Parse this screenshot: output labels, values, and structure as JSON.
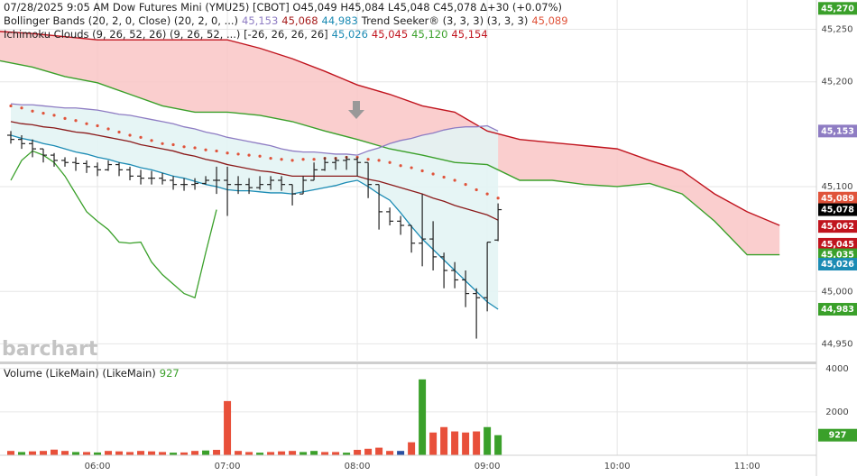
{
  "chart_data": {
    "type": "ohlc",
    "legend": [
      [
        {
          "text": "07/28/2025 9:05 AM Dow Futures Mini (YMU25) [CBOT] O45,049 H45,084 L45,048 C45,078 Δ+30 (+0.07%)"
        }
      ],
      [
        {
          "text": "Bollinger Bands (20, 2, 0, Close) (20, 2, 0, ...)"
        },
        {
          "text": "45,153",
          "color": "#8e7cc3"
        },
        {
          "text": "45,068",
          "color": "#a61c1c"
        },
        {
          "text": "44,983",
          "color": "#1b8bb4"
        },
        {
          "text": "Trend Seeker® (3, 3, 3) (3, 3, 3)"
        },
        {
          "text": "45,089",
          "color": "#e0533a"
        }
      ],
      [
        {
          "text": "Ichimoku Clouds (9, 26, 52, 26) (9, 26, 52, ...) [-26, 26, 26, 26]"
        },
        {
          "text": "45,026",
          "color": "#1b8bb4"
        },
        {
          "text": "45,045",
          "color": "#c0141e"
        },
        {
          "text": "45,120",
          "color": "#3aa02a"
        },
        {
          "text": "45,154",
          "color": "#c0141e"
        }
      ]
    ],
    "watermark": "barchart",
    "grid": true,
    "bar_color": "#222222",
    "x": [
      "05:20",
      "05:25",
      "05:30",
      "05:35",
      "05:40",
      "05:45",
      "05:50",
      "05:55",
      "06:00",
      "06:05",
      "06:10",
      "06:15",
      "06:20",
      "06:25",
      "06:30",
      "06:35",
      "06:40",
      "06:45",
      "06:50",
      "06:55",
      "07:00",
      "07:05",
      "07:10",
      "07:15",
      "07:20",
      "07:25",
      "07:30",
      "07:35",
      "07:40",
      "07:45",
      "07:50",
      "07:55",
      "08:00",
      "08:05",
      "08:10",
      "08:15",
      "08:20",
      "08:25",
      "08:30",
      "08:35",
      "08:40",
      "08:45",
      "08:50",
      "08:55",
      "09:00",
      "09:05"
    ],
    "open": [
      45149,
      45145,
      45141,
      45136,
      45130,
      45125,
      45123,
      45122,
      45119,
      45116,
      45121,
      45116,
      45110,
      45108,
      45108,
      45106,
      45102,
      45102,
      45103,
      45106,
      45106,
      45102,
      45102,
      45099,
      45102,
      45106,
      45102,
      45093,
      45106,
      45116,
      45123,
      45125,
      45126,
      45123,
      45102,
      45076,
      45067,
      45063,
      45046,
      45050,
      45033,
      45020,
      45011,
      44998,
      44994,
      45049
    ],
    "high": [
      45153,
      45149,
      45145,
      45136,
      45132,
      45128,
      45128,
      45125,
      45123,
      45125,
      45123,
      45119,
      45116,
      45115,
      45113,
      45110,
      45108,
      45108,
      45110,
      45119,
      45119,
      45110,
      45108,
      45110,
      45110,
      45110,
      45102,
      45110,
      45123,
      45128,
      45128,
      45129,
      45128,
      45123,
      45102,
      45080,
      45072,
      45063,
      45093,
      45067,
      45037,
      45028,
      45020,
      45003,
      45047,
      45084
    ],
    "low": [
      45141,
      45136,
      45128,
      45123,
      45119,
      45119,
      45115,
      45113,
      45110,
      45115,
      45110,
      45106,
      45102,
      45102,
      45102,
      45097,
      45096,
      45097,
      45102,
      45093,
      45072,
      45093,
      45093,
      45097,
      45097,
      45096,
      45082,
      45093,
      45106,
      45115,
      45116,
      45116,
      45110,
      45089,
      45059,
      45063,
      45054,
      45037,
      45024,
      45020,
      45003,
      45003,
      44985,
      44955,
      44981,
      45048
    ],
    "close": [
      45145,
      45141,
      45136,
      45130,
      45125,
      45123,
      45122,
      45119,
      45116,
      45121,
      45116,
      45110,
      45108,
      45108,
      45106,
      45102,
      45102,
      45103,
      45106,
      45106,
      45102,
      45102,
      45099,
      45102,
      45106,
      45102,
      45093,
      45106,
      45116,
      45123,
      45125,
      45126,
      45123,
      45102,
      45076,
      45067,
      45063,
      45046,
      45050,
      45033,
      45020,
      45011,
      44998,
      44994,
      45047,
      45078
    ],
    "xlim": [
      "05:15",
      "11:32"
    ],
    "xticks": [
      "06:00",
      "07:00",
      "08:00",
      "09:00",
      "10:00",
      "11:00"
    ],
    "ylim": [
      44934,
      45278
    ],
    "yticks": [
      {
        "value": 44950,
        "label": "44,950"
      },
      {
        "value": 45000,
        "label": "45,000"
      },
      {
        "value": 45100,
        "label": "45,100"
      },
      {
        "value": 45200,
        "label": "45,200"
      },
      {
        "value": 45250,
        "label": "45,250"
      }
    ],
    "band_fill": "#e3f4f4",
    "overlays": [
      {
        "style": "line",
        "color": "#8e7cc3",
        "values": [
          45179,
          45178,
          45178,
          45177,
          45176,
          45175,
          45175,
          45174,
          45173,
          45171,
          45169,
          45168,
          45166,
          45164,
          45162,
          45160,
          45157,
          45155,
          45152,
          45150,
          45147,
          45145,
          45143,
          45141,
          45139,
          45136,
          45134,
          45133,
          45133,
          45132,
          45131,
          45131,
          45130,
          45134,
          45137,
          45141,
          45144,
          45146,
          45149,
          45151,
          45154,
          45156,
          45157,
          45157,
          45158,
          45153
        ]
      },
      {
        "style": "line",
        "color": "#8b1a1a",
        "values": [
          45162,
          45160,
          45159,
          45157,
          45156,
          45154,
          45152,
          45151,
          45149,
          45147,
          45145,
          45143,
          45140,
          45138,
          45136,
          45134,
          45131,
          45129,
          45126,
          45124,
          45121,
          45119,
          45117,
          45115,
          45114,
          45112,
          45110,
          45110,
          45110,
          45110,
          45110,
          45110,
          45110,
          45107,
          45105,
          45102,
          45099,
          45096,
          45093,
          45089,
          45086,
          45082,
          45079,
          45076,
          45073,
          45068
        ]
      },
      {
        "style": "line",
        "color": "#1b8bb4",
        "values": [
          45149,
          45146,
          45144,
          45141,
          45139,
          45136,
          45133,
          45131,
          45128,
          45126,
          45123,
          45121,
          45118,
          45116,
          45113,
          45110,
          45108,
          45105,
          45102,
          45100,
          45097,
          45096,
          45096,
          45095,
          45094,
          45094,
          45093,
          45095,
          45097,
          45099,
          45101,
          45104,
          45106,
          45100,
          45093,
          45087,
          45075,
          45062,
          45050,
          45040,
          45030,
          45020,
          45010,
          45000,
          44990,
          44983
        ]
      },
      {
        "style": "dots",
        "color": "#e0533a",
        "values": [
          45177,
          45175,
          45172,
          45170,
          45168,
          45165,
          45163,
          45160,
          45158,
          45155,
          45152,
          45149,
          45147,
          45144,
          45141,
          45140,
          45138,
          45137,
          45135,
          45134,
          45132,
          45131,
          45130,
          45129,
          45127,
          45126,
          45125,
          45126,
          45126,
          45127,
          45127,
          45128,
          45128,
          45126,
          45125,
          45123,
          45120,
          45118,
          45115,
          45112,
          45109,
          45106,
          45102,
          45097,
          45093,
          45089
        ]
      },
      {
        "style": "line",
        "color": "#3aa02a",
        "values": [
          45106,
          45125,
          45134,
          45130,
          45123,
          45110,
          45093,
          45076,
          45067,
          45059,
          45047,
          45046,
          45047,
          45028,
          45016,
          45007,
          44998,
          44994,
          45037,
          45078,
          null,
          null,
          null,
          null,
          null,
          null,
          null,
          null,
          null,
          null,
          null,
          null,
          null,
          null,
          null,
          null,
          null,
          null,
          null,
          null,
          null,
          null,
          null,
          null,
          null,
          null
        ]
      }
    ],
    "cloud": {
      "fill": "#f9c5c5",
      "x": [
        "05:15",
        "05:30",
        "05:45",
        "06:00",
        "06:15",
        "06:30",
        "06:45",
        "07:00",
        "07:15",
        "07:30",
        "07:45",
        "08:00",
        "08:15",
        "08:30",
        "08:45",
        "09:00",
        "09:15",
        "09:30",
        "09:45",
        "10:00",
        "10:15",
        "10:30",
        "10:45",
        "11:00",
        "11:15"
      ],
      "span_a": {
        "color": "#3aa02a",
        "values": [
          45220,
          45214,
          45205,
          45199,
          45188,
          45177,
          45171,
          45171,
          45168,
          45162,
          45153,
          45145,
          45136,
          45130,
          45123,
          45121,
          45106,
          45106,
          45102,
          45100,
          45103,
          45093,
          45067,
          45035,
          45035
        ]
      },
      "span_b": {
        "color": "#c0141e",
        "values": [
          45248,
          45246,
          45243,
          45240,
          45240,
          45240,
          45240,
          45240,
          45232,
          45222,
          45210,
          45197,
          45188,
          45177,
          45171,
          45153,
          45145,
          45142,
          45139,
          45136,
          45125,
          45115,
          45093,
          45076,
          45063
        ]
      }
    },
    "price_tags": [
      {
        "value": 45270,
        "label": "45,270",
        "color": "#3aa02a"
      },
      {
        "value": 45153,
        "label": "45,153",
        "color": "#8e7cc3"
      },
      {
        "value": 45089,
        "label": "45,089",
        "color": "#e0533a"
      },
      {
        "value": 45078,
        "label": "45,078",
        "color": "#000000"
      },
      {
        "value": 45062,
        "label": "45,062",
        "color": "#c0141e"
      },
      {
        "value": 45045,
        "label": "45,045",
        "color": "#c0141e"
      },
      {
        "value": 45035,
        "label": "45,035",
        "color": "#3aa02a"
      },
      {
        "value": 45026,
        "label": "45,026",
        "color": "#1b8bb4"
      },
      {
        "value": 44983,
        "label": "44,983",
        "color": "#3aa02a"
      }
    ],
    "volume": {
      "legend": [
        {
          "text": "Volume (LikeMain) (LikeMain)"
        },
        {
          "text": "927",
          "color": "#3aa02a"
        }
      ],
      "values": [
        200,
        150,
        180,
        200,
        260,
        200,
        150,
        150,
        130,
        200,
        180,
        150,
        200,
        180,
        150,
        120,
        130,
        200,
        220,
        250,
        2500,
        200,
        150,
        120,
        150,
        180,
        200,
        150,
        200,
        150,
        150,
        120,
        250,
        300,
        350,
        200,
        200,
        600,
        3500,
        1050,
        1300,
        1100,
        1050,
        1100,
        1300,
        927
      ],
      "colors": [
        "#e8503a",
        "#3aa02a",
        "#e8503a",
        "#e8503a",
        "#e8503a",
        "#e8503a",
        "#3aa02a",
        "#e8503a",
        "#3aa02a",
        "#e8503a",
        "#e8503a",
        "#e8503a",
        "#e8503a",
        "#e8503a",
        "#e8503a",
        "#3aa02a",
        "#e8503a",
        "#e8503a",
        "#3aa02a",
        "#e8503a",
        "#e8503a",
        "#e8503a",
        "#e8503a",
        "#3aa02a",
        "#e8503a",
        "#e8503a",
        "#e8503a",
        "#3aa02a",
        "#3aa02a",
        "#e8503a",
        "#e8503a",
        "#3aa02a",
        "#e8503a",
        "#e8503a",
        "#e8503a",
        "#e8503a",
        "#2a4fa0",
        "#e8503a",
        "#3aa02a",
        "#e8503a",
        "#e8503a",
        "#e8503a",
        "#e8503a",
        "#e8503a",
        "#3aa02a",
        "#3aa02a"
      ],
      "ylim": [
        0,
        4200
      ],
      "yticks": [
        2000,
        4000
      ],
      "tag": {
        "value": 927,
        "color": "#3aa02a"
      }
    }
  }
}
